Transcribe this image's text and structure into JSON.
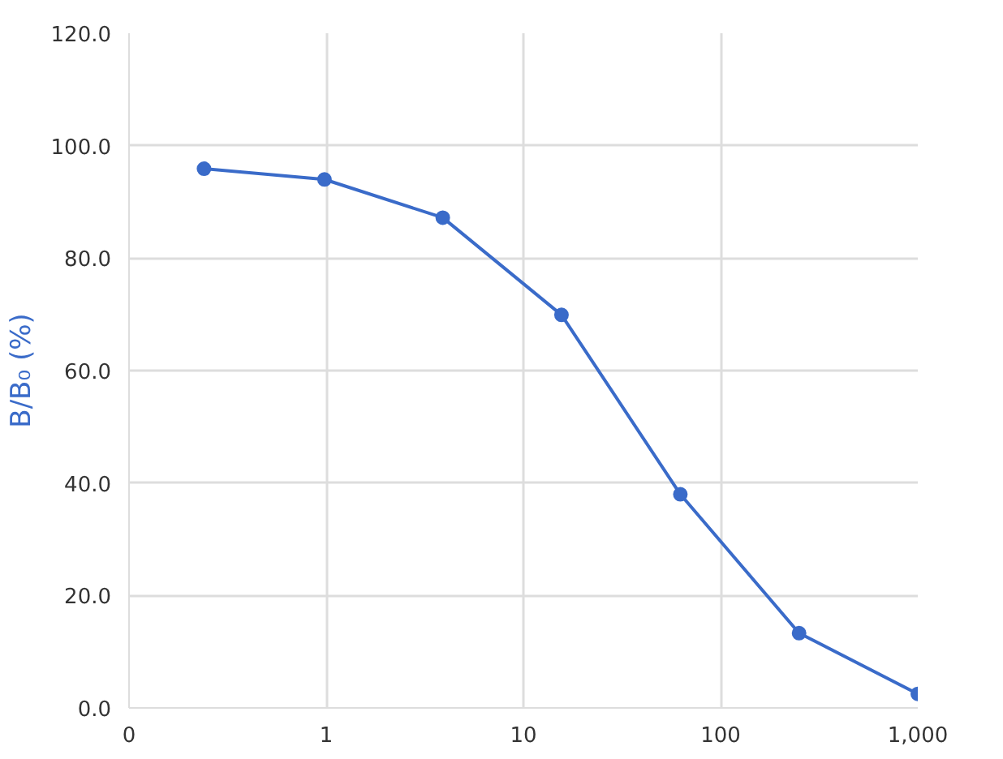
{
  "chart_data": {
    "type": "line",
    "ylabel": "B/B₀ (%)",
    "log": "x",
    "x": [
      0.24,
      0.98,
      3.9,
      15.6,
      62.5,
      250,
      1000
    ],
    "series": [
      {
        "color": "#3a6bc9",
        "values": [
          95.9,
          94.0,
          87.2,
          69.9,
          38.0,
          13.3,
          2.5
        ]
      }
    ],
    "xlim": [
      0.1,
      1000
    ],
    "xticks": [
      {
        "value": 0.1,
        "label": "0"
      },
      {
        "value": 1,
        "label": "1"
      },
      {
        "value": 10,
        "label": "10"
      },
      {
        "value": 100,
        "label": "100"
      },
      {
        "value": 1000,
        "label": "1,000"
      }
    ],
    "ylim": [
      0,
      120
    ],
    "yticks": [
      {
        "value": 0,
        "label": "0.0"
      },
      {
        "value": 20,
        "label": "20.0"
      },
      {
        "value": 40,
        "label": "40.0"
      },
      {
        "value": 60,
        "label": "60.0"
      },
      {
        "value": 80,
        "label": "80.0"
      },
      {
        "value": 100,
        "label": "100.0"
      },
      {
        "value": 120,
        "label": "120.0"
      }
    ],
    "grid": true,
    "marker": "circle",
    "line_style": "solid"
  }
}
